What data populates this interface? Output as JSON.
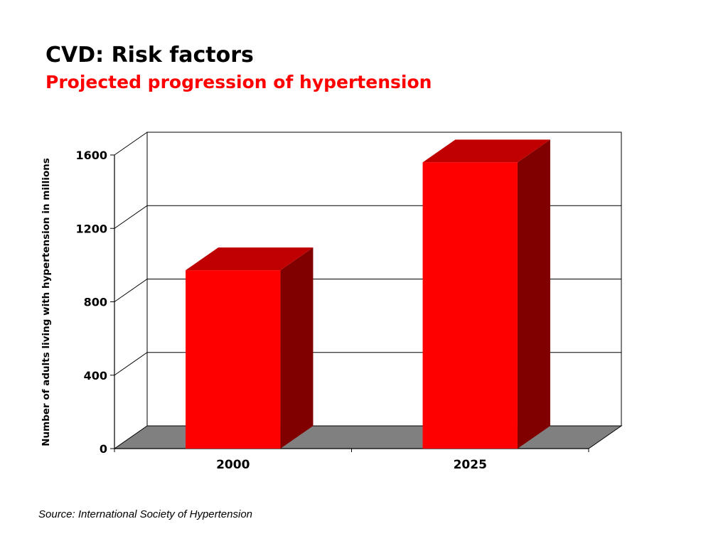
{
  "slide": {
    "title": "CVD: Risk factors",
    "subtitle": "Projected progression of hypertension",
    "source": "Source: International Society of Hypertension"
  },
  "colors": {
    "title": "#000000",
    "subtitle": "#ff0000",
    "bar_front": "#ff0000",
    "bar_top": "#c00000",
    "bar_side": "#800000",
    "floor": "#808080",
    "axis": "#000000",
    "gridline": "#000000"
  },
  "chart_data": {
    "type": "bar",
    "style": "3d",
    "categories": [
      "2000",
      "2025"
    ],
    "values": [
      972,
      1560
    ],
    "ylabel": "Number of adults living with hypertension in millions",
    "xlabel": "",
    "ylim": [
      0,
      1600
    ],
    "yticks": [
      "0",
      "400",
      "800",
      "1200",
      "1600"
    ],
    "grid": true,
    "legend": "none"
  }
}
